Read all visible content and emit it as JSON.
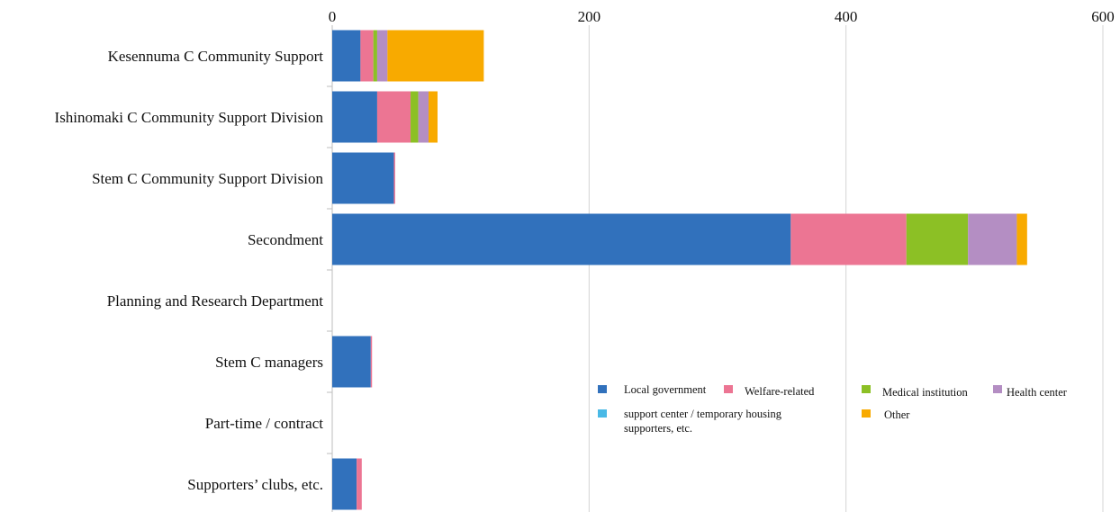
{
  "chart_data": {
    "type": "bar",
    "orientation": "horizontal",
    "stacked": true,
    "title": "",
    "xlabel": "",
    "ylabel": "",
    "xlim": [
      0,
      600
    ],
    "xticks": [
      0,
      200,
      400,
      600
    ],
    "grid": true,
    "legend_position": "bottom-right",
    "categories": [
      "Kesennuma C Community Support",
      "Ishinomaki C Community Support Division",
      "Stem C Community Support Division",
      "Secondment",
      "Planning and Research Department",
      "Stem C managers",
      "Part-time / contract",
      "Supporters’ clubs, etc."
    ],
    "series": [
      {
        "name": "Local government",
        "color": "#3171bc",
        "values": [
          22,
          35,
          48,
          357,
          0,
          30,
          0,
          19
        ]
      },
      {
        "name": "Welfare-related",
        "color": "#ec7593",
        "values": [
          10,
          26,
          1,
          90,
          0,
          1,
          0,
          4
        ]
      },
      {
        "name": "Medical institution",
        "color": "#8cc025",
        "values": [
          3,
          6,
          0,
          48,
          0,
          0,
          0,
          0
        ]
      },
      {
        "name": "Health center",
        "color": "#b48ec3",
        "values": [
          8,
          8,
          0,
          38,
          0,
          0,
          0,
          0
        ]
      },
      {
        "name": "support center / temporary housing supporters, etc.",
        "color": "#49b9e6",
        "values": [
          0,
          0,
          0,
          0,
          0,
          0,
          0,
          0
        ]
      },
      {
        "name": "Other",
        "color": "#f8aa00",
        "values": [
          75,
          7,
          0,
          8,
          0,
          0,
          0,
          0
        ]
      }
    ]
  }
}
